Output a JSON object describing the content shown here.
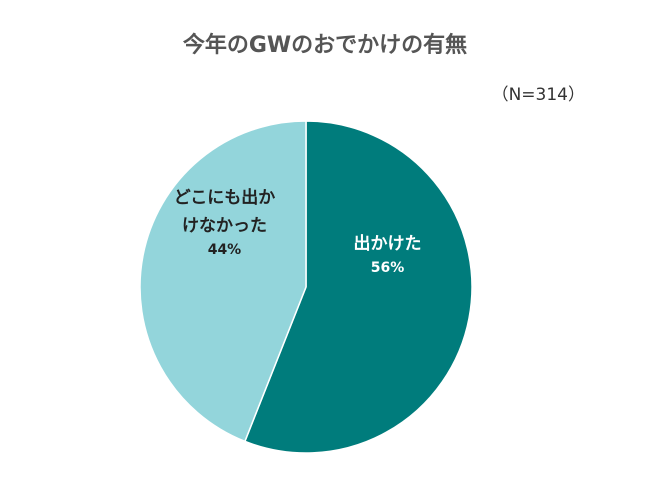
{
  "chart_data": {
    "type": "pie",
    "title": "今年のGWのおでかけの有無",
    "subtitle": "（N=314）",
    "categories": [
      "出かけた",
      "どこにも出かけなかった"
    ],
    "values": [
      56,
      44
    ],
    "value_labels": [
      "56%",
      "44%"
    ],
    "colors": [
      "#007c7c",
      "#93d5db"
    ]
  }
}
